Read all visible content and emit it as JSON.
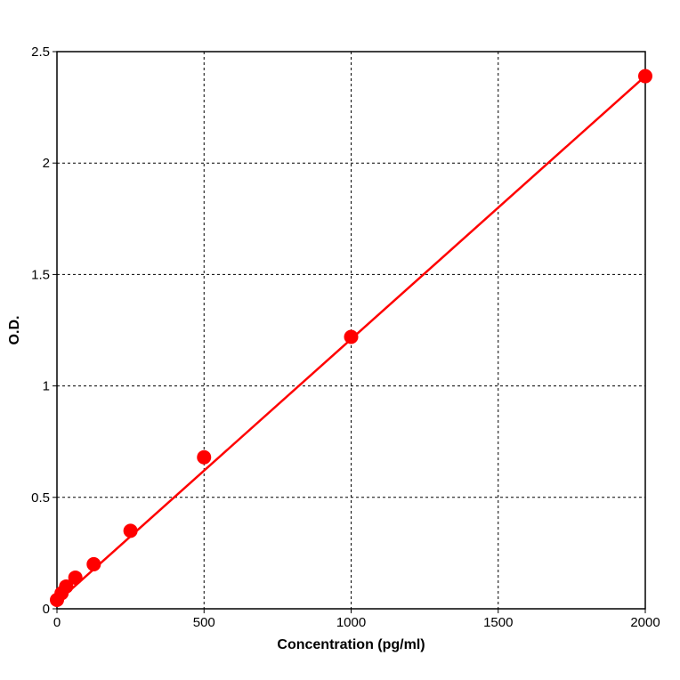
{
  "chart_data": {
    "type": "scatter",
    "title": "",
    "xlabel": "Concentration (pg/ml)",
    "ylabel": "O.D.",
    "xlim": [
      0,
      2000
    ],
    "ylim": [
      0,
      2.5
    ],
    "x_ticks": [
      "0",
      "500",
      "1000",
      "1500",
      "2000"
    ],
    "y_ticks": [
      "0",
      "0.5",
      "1",
      "1.5",
      "2",
      "2.5"
    ],
    "grid": true,
    "series": [
      {
        "color": "#ff0000",
        "points": [
          {
            "x": 0,
            "y": 0.04
          },
          {
            "x": 15.6,
            "y": 0.07
          },
          {
            "x": 31.2,
            "y": 0.1
          },
          {
            "x": 62.5,
            "y": 0.14
          },
          {
            "x": 125,
            "y": 0.2
          },
          {
            "x": 250,
            "y": 0.35
          },
          {
            "x": 500,
            "y": 0.68
          },
          {
            "x": 1000,
            "y": 1.22
          },
          {
            "x": 2000,
            "y": 2.39
          }
        ]
      }
    ],
    "fit_line": {
      "x": [
        0,
        2000
      ],
      "y": [
        0.03,
        2.39
      ]
    }
  }
}
